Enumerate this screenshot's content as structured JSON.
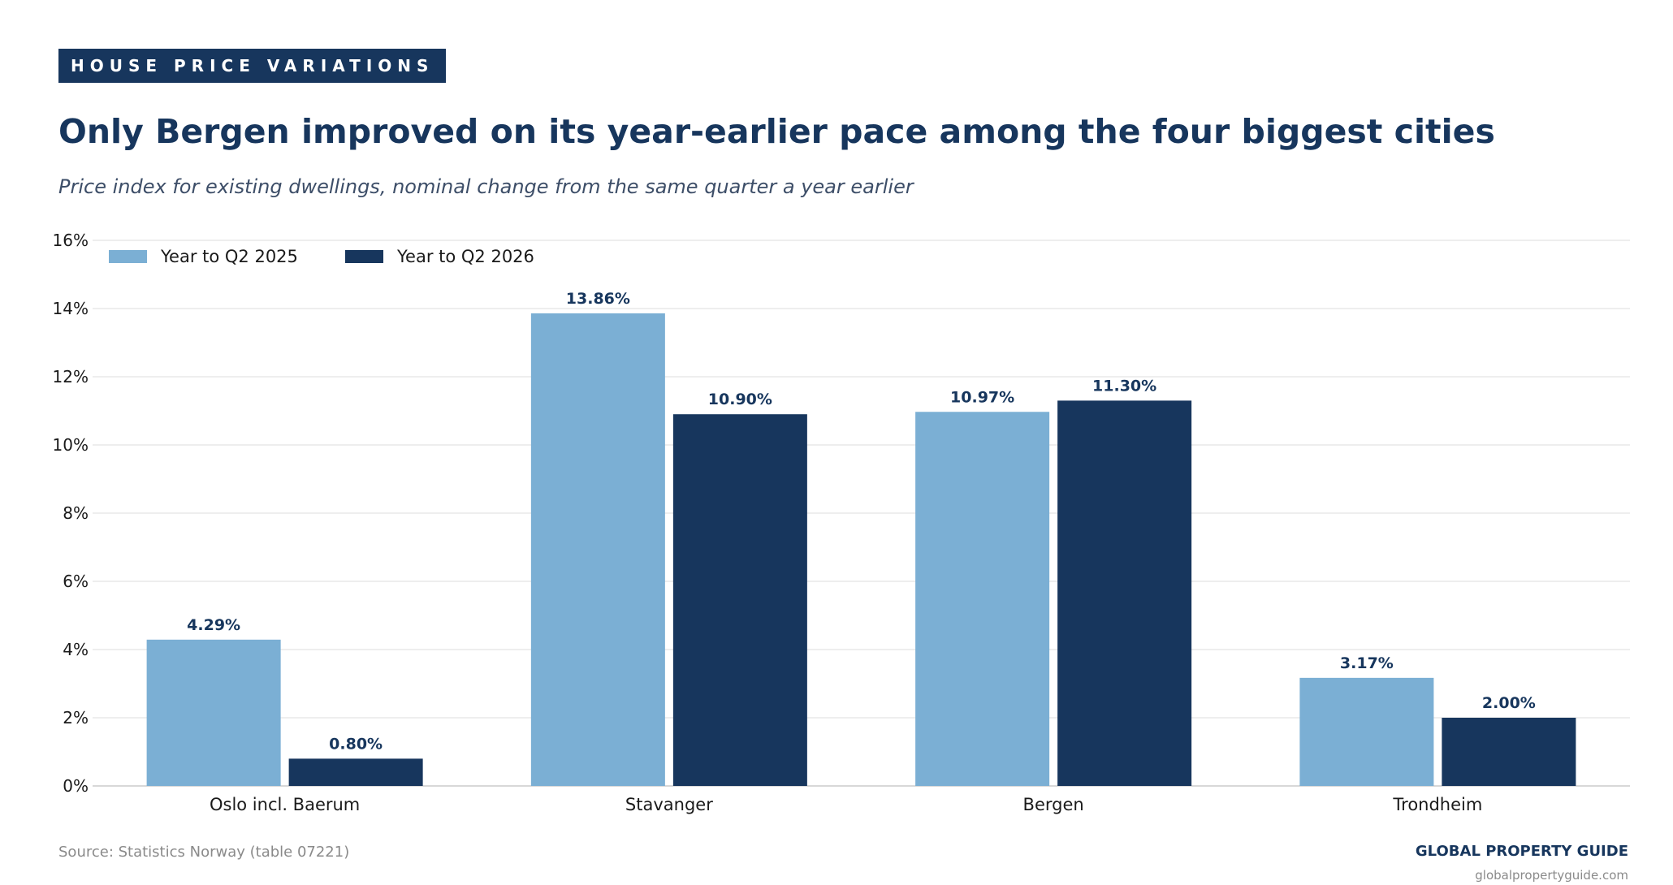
{
  "header": {
    "tag": "HOUSE PRICE VARIATIONS",
    "title": "Only Bergen improved on its year-earlier pace among the four biggest cities",
    "subtitle": "Price index for existing dwellings, nominal change from the same quarter a year earlier"
  },
  "footer": {
    "source": "Source: Statistics Norway (table 07221)",
    "brand": "GLOBAL PROPERTY GUIDE",
    "url": "globalpropertyguide.com"
  },
  "colors": {
    "series_2025": "#7bafd4",
    "series_2026": "#17365d",
    "label": "#17365d",
    "grid": "#e3e3e3",
    "axis": "#cccccc",
    "tick": "#1a1a1a"
  },
  "chart_data": {
    "type": "bar",
    "title": "",
    "xlabel": "",
    "ylabel": "",
    "categories": [
      "Oslo incl. Baerum",
      "Stavanger",
      "Bergen",
      "Trondheim"
    ],
    "series": [
      {
        "name": "Year to Q2 2025",
        "values": [
          4.29,
          13.86,
          10.97,
          3.17
        ],
        "labels": [
          "4.29%",
          "13.86%",
          "10.97%",
          "3.17%"
        ]
      },
      {
        "name": "Year to Q2 2026",
        "values": [
          0.8,
          10.9,
          11.3,
          2.0
        ],
        "labels": [
          "0.80%",
          "10.90%",
          "11.30%",
          "2.00%"
        ]
      }
    ],
    "ylim": [
      0,
      16
    ],
    "yticks": [
      0,
      2,
      4,
      6,
      8,
      10,
      12,
      14,
      16
    ],
    "ytick_labels": [
      "0%",
      "2%",
      "4%",
      "6%",
      "8%",
      "10%",
      "12%",
      "14%",
      "16%"
    ],
    "grid": "horizontal",
    "legend_position": "top-left"
  }
}
